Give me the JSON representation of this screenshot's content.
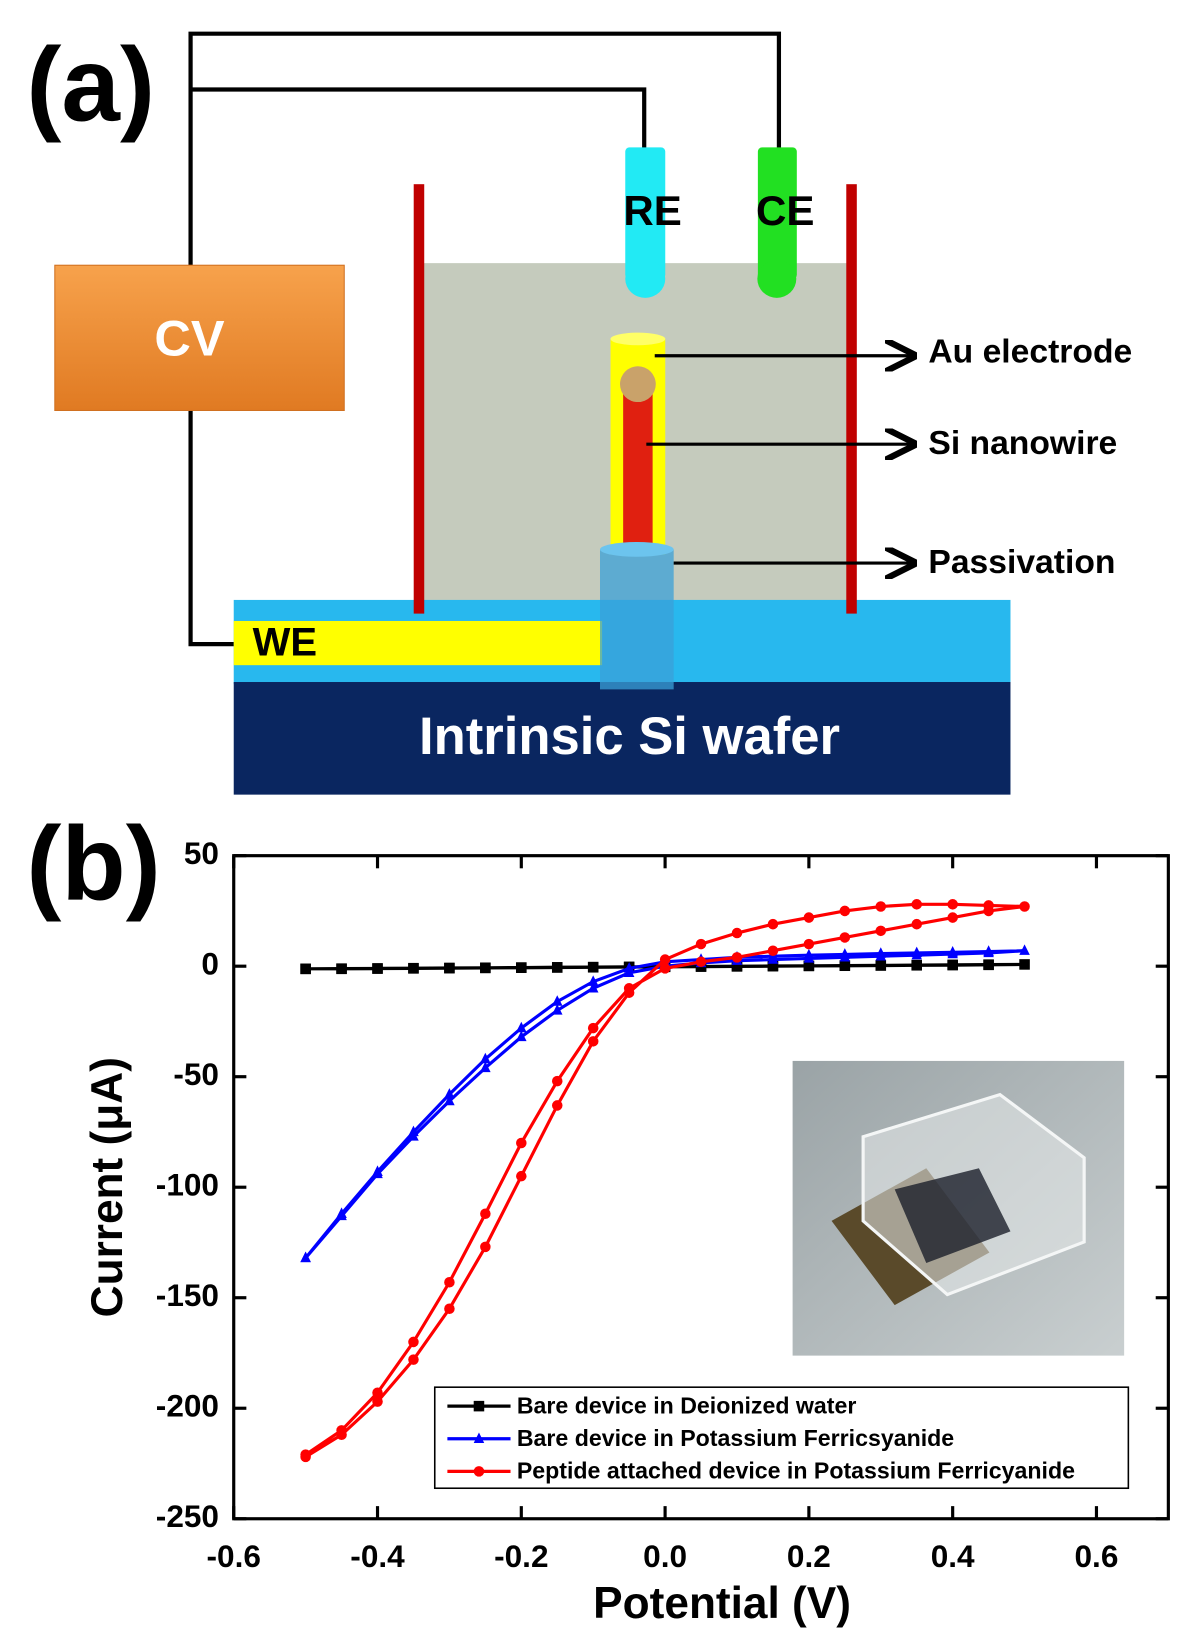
{
  "panels": {
    "a": "(a)",
    "b": "(b)"
  },
  "diagram": {
    "cv": "CV",
    "re": "RE",
    "ce": "CE",
    "we": "WE",
    "au_electrode": "Au electrode",
    "si_nanowire": "Si nanowire",
    "passivation": "Passivation",
    "wafer": "Intrinsic Si wafer"
  },
  "chart_data": {
    "type": "line",
    "xlabel": "Potential (V)",
    "ylabel": "Current (μA)",
    "xlim": [
      -0.6,
      0.7
    ],
    "ylim": [
      -250,
      50
    ],
    "xticks": [
      -0.6,
      -0.4,
      -0.2,
      {
        "value": 0,
        "label": "0.0"
      },
      0.2,
      0.4,
      0.6
    ],
    "yticks": [
      50,
      0,
      -50,
      -100,
      -150,
      -200,
      -250
    ],
    "legend": "lower right",
    "series": [
      {
        "name": "Bare device in Deionized water",
        "color": "#000000",
        "marker": "square",
        "x": [
          -0.5,
          -0.45,
          -0.4,
          -0.35,
          -0.3,
          -0.25,
          -0.2,
          -0.15,
          -0.1,
          -0.05,
          0,
          0.05,
          0.1,
          0.15,
          0.2,
          0.25,
          0.3,
          0.35,
          0.4,
          0.45,
          0.5,
          0.45,
          0.4,
          0.35,
          0.3,
          0.25,
          0.2,
          0.15,
          0.1,
          0.05,
          0,
          -0.05,
          -0.1,
          -0.15,
          -0.2,
          -0.25,
          -0.3,
          -0.35,
          -0.4,
          -0.45,
          -0.5
        ],
        "values": [
          -1.2,
          -1.1,
          -1,
          -0.9,
          -0.8,
          -0.7,
          -0.6,
          -0.5,
          -0.4,
          -0.3,
          -0.2,
          -0.1,
          0,
          0.1,
          0.2,
          0.3,
          0.4,
          0.5,
          0.6,
          0.7,
          0.8,
          0.6,
          0.5,
          0.4,
          0.3,
          0.2,
          0.1,
          0,
          -0.1,
          -0.2,
          -0.3,
          -0.4,
          -0.5,
          -0.6,
          -0.7,
          -0.8,
          -0.9,
          -1,
          -1.1,
          -1.2,
          -1.2
        ]
      },
      {
        "name": "Bare device in Potassium Ferricsyanide",
        "color": "#0000ff",
        "marker": "triangle",
        "x": [
          -0.5,
          -0.45,
          -0.4,
          -0.35,
          -0.3,
          -0.25,
          -0.2,
          -0.15,
          -0.1,
          -0.05,
          0,
          0.05,
          0.1,
          0.15,
          0.2,
          0.25,
          0.3,
          0.35,
          0.4,
          0.45,
          0.5,
          0.45,
          0.4,
          0.35,
          0.3,
          0.25,
          0.2,
          0.15,
          0.1,
          0.05,
          0,
          -0.05,
          -0.1,
          -0.15,
          -0.2,
          -0.25,
          -0.3,
          -0.35,
          -0.4,
          -0.45,
          -0.5
        ],
        "values": [
          -132,
          -112,
          -93,
          -75,
          -58,
          -42,
          -28,
          -16,
          -7,
          -1,
          2,
          3,
          4,
          4.5,
          5,
          5.3,
          5.7,
          6,
          6.3,
          6.6,
          7,
          6,
          5.5,
          5,
          4.5,
          4,
          3.5,
          3,
          2.5,
          1.5,
          0,
          -3,
          -10,
          -20,
          -32,
          -46,
          -61,
          -77,
          -94,
          -113,
          -132
        ]
      },
      {
        "name": "Peptide attached device in Potassium Ferricyanide",
        "color": "#ff0000",
        "marker": "circle",
        "x": [
          -0.5,
          -0.45,
          -0.4,
          -0.35,
          -0.3,
          -0.25,
          -0.2,
          -0.15,
          -0.1,
          -0.05,
          0,
          0.05,
          0.1,
          0.15,
          0.2,
          0.25,
          0.3,
          0.35,
          0.4,
          0.45,
          0.5,
          0.45,
          0.4,
          0.35,
          0.3,
          0.25,
          0.2,
          0.15,
          0.1,
          0.05,
          0,
          -0.05,
          -0.1,
          -0.15,
          -0.2,
          -0.25,
          -0.3,
          -0.35,
          -0.4,
          -0.45,
          -0.5
        ],
        "values": [
          -222,
          -212,
          -197,
          -178,
          -155,
          -127,
          -95,
          -63,
          -34,
          -12,
          3,
          10,
          15,
          19,
          22,
          25,
          27,
          28,
          28,
          27.5,
          27,
          25,
          22,
          19,
          16,
          13,
          10,
          7,
          4,
          2,
          -1,
          -10,
          -28,
          -52,
          -80,
          -112,
          -143,
          -170,
          -193,
          -210,
          -221
        ]
      }
    ]
  }
}
